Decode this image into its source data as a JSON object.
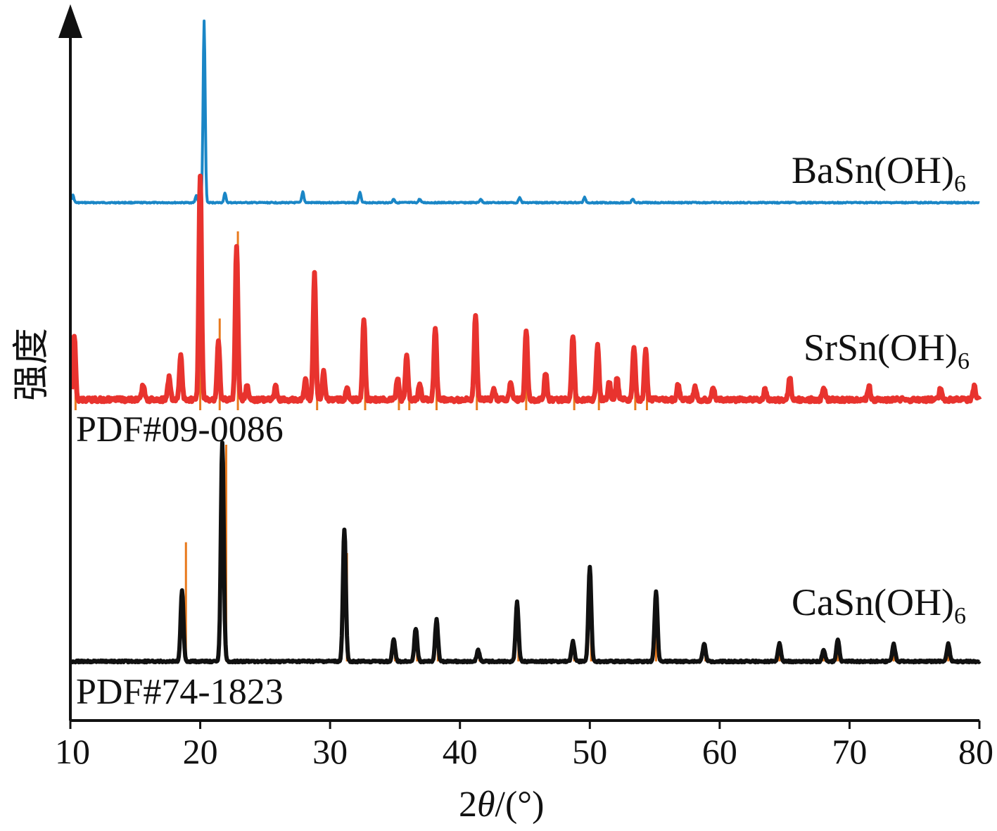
{
  "chart_data": {
    "type": "line",
    "xlabel_parts": [
      "2",
      "θ",
      "/(°)"
    ],
    "ylabel": "强度",
    "xlim": [
      10,
      80
    ],
    "xticks": [
      10,
      20,
      30,
      40,
      50,
      60,
      70,
      80
    ],
    "tick_labels": [
      "10",
      "20",
      "30",
      "40",
      "50",
      "60",
      "70",
      "80"
    ],
    "grid": false,
    "colors": {
      "BaSn": "#1a86c6",
      "SrSn": "#e8332e",
      "CaSn": "#111111",
      "reference": "#e87a1e",
      "axis": "#111111"
    },
    "series": [
      {
        "name_parts": [
          "BaSn(OH)",
          "6"
        ],
        "color": "#1a86c6",
        "baseline": 0.0,
        "peaks": [
          {
            "x": 10.2,
            "y": 0.04
          },
          {
            "x": 19.7,
            "y": 0.04
          },
          {
            "x": 20.3,
            "y": 1.0
          },
          {
            "x": 21.9,
            "y": 0.05
          },
          {
            "x": 27.9,
            "y": 0.06
          },
          {
            "x": 32.3,
            "y": 0.06
          },
          {
            "x": 34.9,
            "y": 0.02
          },
          {
            "x": 36.9,
            "y": 0.02
          },
          {
            "x": 41.6,
            "y": 0.02
          },
          {
            "x": 44.6,
            "y": 0.03
          },
          {
            "x": 49.6,
            "y": 0.03
          },
          {
            "x": 53.3,
            "y": 0.02
          }
        ]
      },
      {
        "name_parts": [
          "SrSn(OH)",
          "6"
        ],
        "color": "#e8332e",
        "baseline": 0.0,
        "peaks": [
          {
            "x": 10.3,
            "y": 0.29
          },
          {
            "x": 15.6,
            "y": 0.07
          },
          {
            "x": 17.6,
            "y": 0.1
          },
          {
            "x": 18.5,
            "y": 0.2
          },
          {
            "x": 20.0,
            "y": 1.0
          },
          {
            "x": 21.4,
            "y": 0.27
          },
          {
            "x": 22.8,
            "y": 0.68
          },
          {
            "x": 23.6,
            "y": 0.06
          },
          {
            "x": 25.8,
            "y": 0.06
          },
          {
            "x": 28.1,
            "y": 0.09
          },
          {
            "x": 28.8,
            "y": 0.56
          },
          {
            "x": 29.5,
            "y": 0.13
          },
          {
            "x": 31.3,
            "y": 0.05
          },
          {
            "x": 32.6,
            "y": 0.35
          },
          {
            "x": 35.2,
            "y": 0.1
          },
          {
            "x": 35.9,
            "y": 0.2
          },
          {
            "x": 36.9,
            "y": 0.07
          },
          {
            "x": 38.1,
            "y": 0.32
          },
          {
            "x": 41.2,
            "y": 0.38
          },
          {
            "x": 42.6,
            "y": 0.05
          },
          {
            "x": 43.9,
            "y": 0.07
          },
          {
            "x": 45.1,
            "y": 0.31
          },
          {
            "x": 46.6,
            "y": 0.12
          },
          {
            "x": 48.7,
            "y": 0.29
          },
          {
            "x": 50.6,
            "y": 0.25
          },
          {
            "x": 51.5,
            "y": 0.08
          },
          {
            "x": 52.1,
            "y": 0.1
          },
          {
            "x": 53.4,
            "y": 0.24
          },
          {
            "x": 54.3,
            "y": 0.22
          },
          {
            "x": 56.8,
            "y": 0.07
          },
          {
            "x": 58.1,
            "y": 0.06
          },
          {
            "x": 59.5,
            "y": 0.06
          },
          {
            "x": 63.5,
            "y": 0.05
          },
          {
            "x": 65.4,
            "y": 0.1
          },
          {
            "x": 68.0,
            "y": 0.06
          },
          {
            "x": 71.5,
            "y": 0.06
          },
          {
            "x": 77.0,
            "y": 0.05
          },
          {
            "x": 79.6,
            "y": 0.06
          }
        ],
        "reference": {
          "label": "PDF#09-0086",
          "sticks": [
            {
              "x": 10.4,
              "y": 0.3
            },
            {
              "x": 20.0,
              "y": 1.0
            },
            {
              "x": 21.5,
              "y": 0.4
            },
            {
              "x": 22.9,
              "y": 0.78
            },
            {
              "x": 29.0,
              "y": 0.35
            },
            {
              "x": 32.7,
              "y": 0.25
            },
            {
              "x": 35.3,
              "y": 0.05
            },
            {
              "x": 36.1,
              "y": 0.15
            },
            {
              "x": 38.2,
              "y": 0.2
            },
            {
              "x": 41.3,
              "y": 0.25
            },
            {
              "x": 45.1,
              "y": 0.2
            },
            {
              "x": 48.8,
              "y": 0.2
            },
            {
              "x": 50.7,
              "y": 0.15
            },
            {
              "x": 53.5,
              "y": 0.15
            },
            {
              "x": 54.4,
              "y": 0.12
            }
          ]
        }
      },
      {
        "name_parts": [
          "CaSn(OH)",
          "6"
        ],
        "color": "#111111",
        "baseline": 0.0,
        "peaks": [
          {
            "x": 18.6,
            "y": 0.32
          },
          {
            "x": 21.7,
            "y": 1.0
          },
          {
            "x": 31.1,
            "y": 0.6
          },
          {
            "x": 34.9,
            "y": 0.1
          },
          {
            "x": 36.6,
            "y": 0.15
          },
          {
            "x": 38.2,
            "y": 0.19
          },
          {
            "x": 41.4,
            "y": 0.05
          },
          {
            "x": 44.4,
            "y": 0.27
          },
          {
            "x": 48.7,
            "y": 0.09
          },
          {
            "x": 50.0,
            "y": 0.43
          },
          {
            "x": 55.1,
            "y": 0.32
          },
          {
            "x": 58.8,
            "y": 0.08
          },
          {
            "x": 64.6,
            "y": 0.08
          },
          {
            "x": 68.0,
            "y": 0.05
          },
          {
            "x": 69.1,
            "y": 0.1
          },
          {
            "x": 73.4,
            "y": 0.08
          },
          {
            "x": 77.6,
            "y": 0.08
          }
        ],
        "reference": {
          "label": "PDF#74-1823",
          "sticks": [
            {
              "x": 18.9,
              "y": 0.55
            },
            {
              "x": 22.0,
              "y": 1.0
            },
            {
              "x": 31.3,
              "y": 0.5
            },
            {
              "x": 35.0,
              "y": 0.07
            },
            {
              "x": 36.7,
              "y": 0.14
            },
            {
              "x": 38.3,
              "y": 0.15
            },
            {
              "x": 41.5,
              "y": 0.04
            },
            {
              "x": 44.5,
              "y": 0.13
            },
            {
              "x": 48.8,
              "y": 0.06
            },
            {
              "x": 50.1,
              "y": 0.35
            },
            {
              "x": 55.1,
              "y": 0.25
            },
            {
              "x": 58.9,
              "y": 0.05
            },
            {
              "x": 64.6,
              "y": 0.05
            },
            {
              "x": 68.0,
              "y": 0.04
            },
            {
              "x": 69.1,
              "y": 0.07
            },
            {
              "x": 73.4,
              "y": 0.06
            },
            {
              "x": 77.6,
              "y": 0.06
            }
          ]
        }
      }
    ]
  }
}
